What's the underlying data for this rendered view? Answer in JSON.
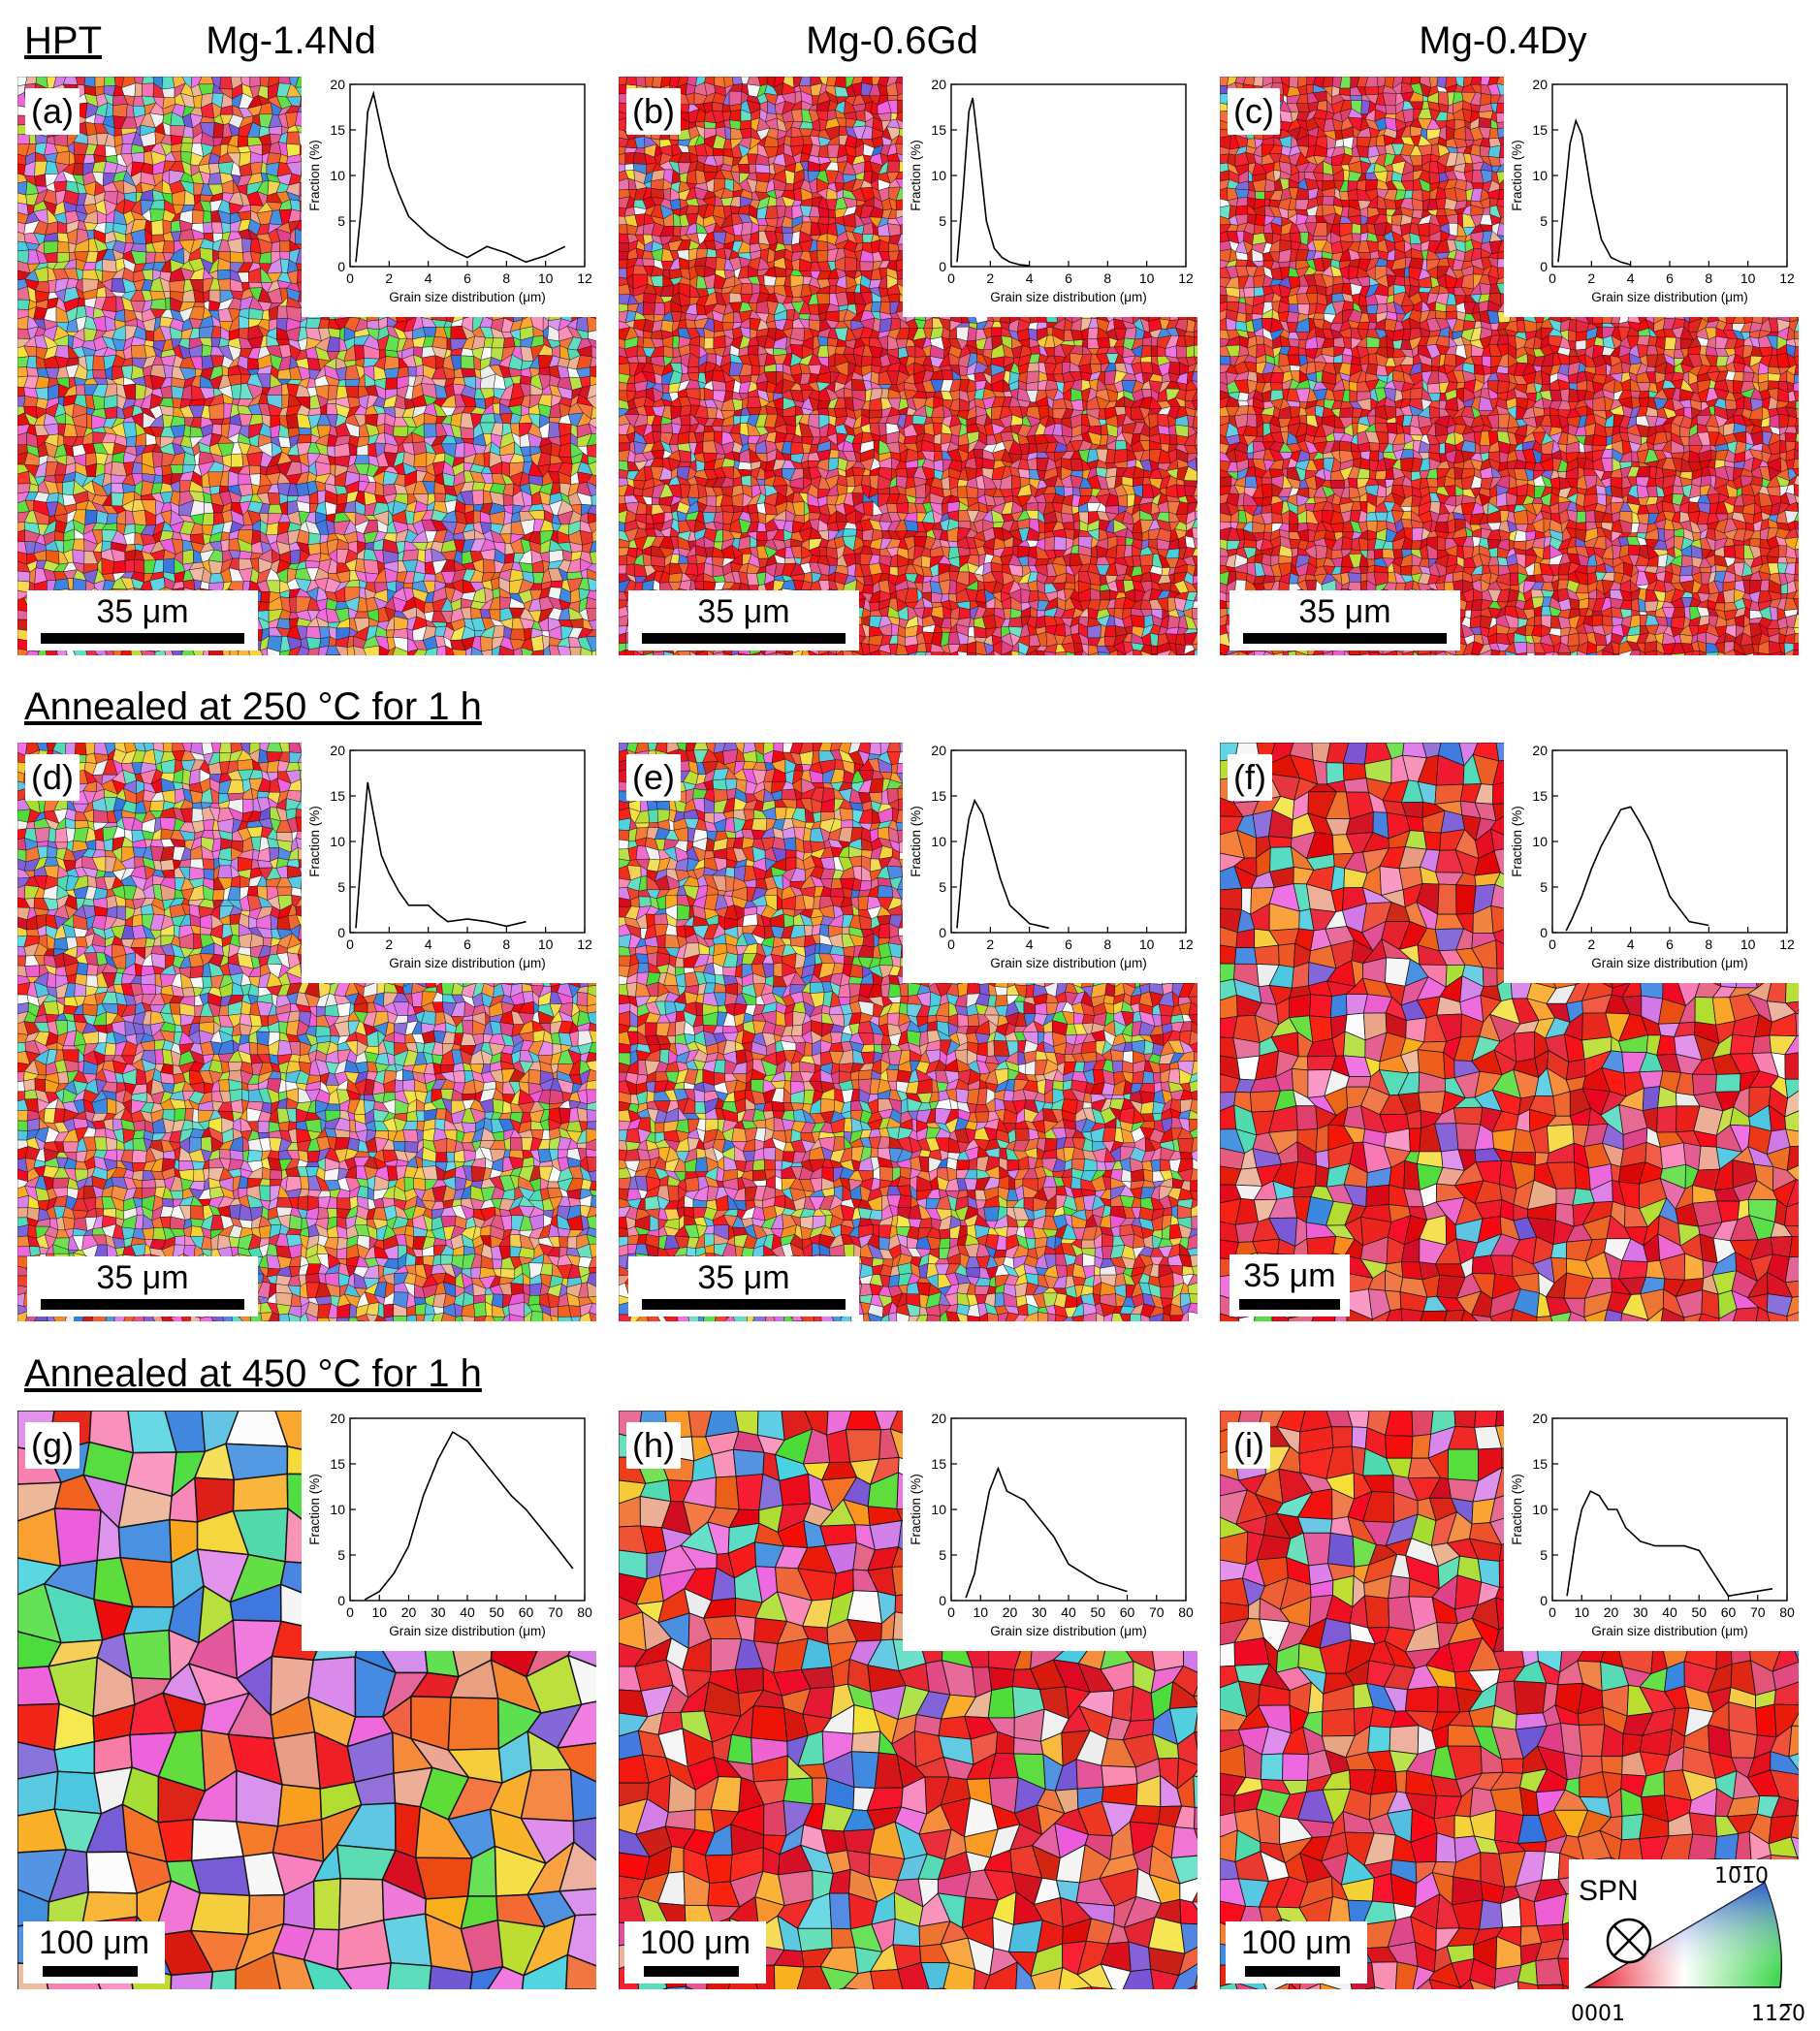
{
  "headings": {
    "hpt": "HPT",
    "annealed_250": "Annealed at 250 °C for 1 h",
    "annealed_450": "Annealed at 450 °C for 1 h"
  },
  "columns": [
    "Mg-1.4Nd",
    "Mg-0.6Gd",
    "Mg-0.4Dy"
  ],
  "scale_labels": {
    "small": "35 μm",
    "large": "100 μm"
  },
  "legend": {
    "spn": "SPN",
    "corner_bottom_left": "0001",
    "corner_top": "10̅1̅0",
    "corner_bottom_right": "112̅0",
    "colors": [
      "#e8192c",
      "#2a4dd8",
      "#39d64a"
    ]
  },
  "chart_data": [
    {
      "panel": "(a)",
      "type": "line",
      "xlabel": "Grain size distribution (μm)",
      "ylabel": "Fraction (%)",
      "xlim": [
        0,
        12
      ],
      "ylim": [
        0,
        20
      ],
      "xticks": [
        0,
        2,
        4,
        6,
        8,
        10,
        12
      ],
      "yticks": [
        0,
        5,
        10,
        15,
        20
      ],
      "x": [
        0.3,
        0.6,
        0.9,
        1.2,
        1.5,
        2,
        2.5,
        3,
        4,
        5,
        6,
        7,
        8,
        9,
        10,
        11
      ],
      "y": [
        0.5,
        7,
        17,
        19,
        16,
        11,
        8,
        5.5,
        3.5,
        2,
        1,
        2.2,
        1.5,
        0.5,
        1.2,
        2.2
      ]
    },
    {
      "panel": "(b)",
      "type": "line",
      "xlabel": "Grain size distribution (μm)",
      "ylabel": "Fraction (%)",
      "xlim": [
        0,
        12
      ],
      "ylim": [
        0,
        20
      ],
      "xticks": [
        0,
        2,
        4,
        6,
        8,
        10,
        12
      ],
      "yticks": [
        0,
        5,
        10,
        15,
        20
      ],
      "x": [
        0.3,
        0.6,
        0.9,
        1.1,
        1.4,
        1.8,
        2.2,
        2.6,
        3,
        3.5,
        4
      ],
      "y": [
        0.5,
        8,
        17,
        18.5,
        13,
        5,
        2,
        1,
        0.5,
        0.2,
        0.1
      ]
    },
    {
      "panel": "(c)",
      "type": "line",
      "xlabel": "Grain size distribution (μm)",
      "ylabel": "Fraction (%)",
      "xlim": [
        0,
        12
      ],
      "ylim": [
        0,
        20
      ],
      "xticks": [
        0,
        2,
        4,
        6,
        8,
        10,
        12
      ],
      "yticks": [
        0,
        5,
        10,
        15,
        20
      ],
      "x": [
        0.3,
        0.6,
        0.9,
        1.2,
        1.5,
        2,
        2.5,
        3,
        3.5,
        4
      ],
      "y": [
        0.5,
        7,
        13.5,
        16,
        14.5,
        8,
        3,
        1,
        0.5,
        0.2
      ]
    },
    {
      "panel": "(d)",
      "type": "line",
      "xlabel": "Grain size distribution (μm)",
      "ylabel": "Fraction (%)",
      "xlim": [
        0,
        12
      ],
      "ylim": [
        0,
        20
      ],
      "xticks": [
        0,
        2,
        4,
        6,
        8,
        10,
        12
      ],
      "yticks": [
        0,
        5,
        10,
        15,
        20
      ],
      "x": [
        0.3,
        0.6,
        0.9,
        1.2,
        1.6,
        2,
        2.5,
        3,
        4,
        4.5,
        5,
        6,
        7,
        8,
        9
      ],
      "y": [
        0.5,
        9,
        16.5,
        13,
        8.5,
        6.5,
        4.5,
        3,
        3,
        2,
        1.2,
        1.5,
        1.2,
        0.7,
        1.2
      ]
    },
    {
      "panel": "(e)",
      "type": "line",
      "xlabel": "Grain size distribution (μm)",
      "ylabel": "Fraction (%)",
      "xlim": [
        0,
        12
      ],
      "ylim": [
        0,
        20
      ],
      "xticks": [
        0,
        2,
        4,
        6,
        8,
        10,
        12
      ],
      "yticks": [
        0,
        5,
        10,
        15,
        20
      ],
      "x": [
        0.3,
        0.6,
        0.9,
        1.2,
        1.6,
        2,
        2.5,
        3,
        4,
        5
      ],
      "y": [
        0.5,
        8,
        12.5,
        14.5,
        13,
        10,
        6,
        3,
        1,
        0.5
      ]
    },
    {
      "panel": "(f)",
      "type": "line",
      "xlabel": "Grain size distribution (μm)",
      "ylabel": "Fraction (%)",
      "xlim": [
        0,
        12
      ],
      "ylim": [
        0,
        20
      ],
      "xticks": [
        0,
        2,
        4,
        6,
        8,
        10,
        12
      ],
      "yticks": [
        0,
        5,
        10,
        15,
        20
      ],
      "x": [
        0.7,
        1,
        1.5,
        2,
        2.5,
        3,
        3.5,
        4,
        4.5,
        5,
        5.5,
        6,
        7,
        8
      ],
      "y": [
        0.2,
        1.5,
        4,
        7,
        9.5,
        11.5,
        13.5,
        13.8,
        12,
        10,
        7,
        4,
        1.2,
        0.8
      ]
    },
    {
      "panel": "(g)",
      "type": "line",
      "xlabel": "Grain size distribution (μm)",
      "ylabel": "Fraction (%)",
      "xlim": [
        0,
        80
      ],
      "ylim": [
        0,
        20
      ],
      "xticks": [
        0,
        10,
        20,
        30,
        40,
        50,
        60,
        70,
        80
      ],
      "yticks": [
        0,
        5,
        10,
        15,
        20
      ],
      "x": [
        5,
        10,
        15,
        20,
        25,
        30,
        35,
        40,
        45,
        50,
        55,
        60,
        65,
        70,
        76
      ],
      "y": [
        0.1,
        1,
        3,
        6,
        11.5,
        15.5,
        18.5,
        17.5,
        15.5,
        13.5,
        11.5,
        10,
        8,
        6,
        3.5
      ]
    },
    {
      "panel": "(h)",
      "type": "line",
      "xlabel": "Grain size distribution (μm)",
      "ylabel": "Fraction (%)",
      "xlim": [
        0,
        80
      ],
      "ylim": [
        0,
        20
      ],
      "xticks": [
        0,
        10,
        20,
        30,
        40,
        50,
        60,
        70,
        80
      ],
      "yticks": [
        0,
        5,
        10,
        15,
        20
      ],
      "x": [
        5,
        8,
        10,
        13,
        16,
        19,
        22,
        25,
        30,
        35,
        40,
        45,
        50,
        55,
        60
      ],
      "y": [
        0.3,
        3,
        7,
        12,
        14.5,
        12,
        11.5,
        11,
        9,
        7,
        4,
        3,
        2,
        1.5,
        1
      ]
    },
    {
      "panel": "(i)",
      "type": "line",
      "xlabel": "Grain size distribution (μm)",
      "ylabel": "Fraction (%)",
      "xlim": [
        0,
        80
      ],
      "ylim": [
        0,
        20
      ],
      "xticks": [
        0,
        10,
        20,
        30,
        40,
        50,
        60,
        70,
        80
      ],
      "yticks": [
        0,
        5,
        10,
        15,
        20
      ],
      "x": [
        5,
        8,
        10,
        13,
        16,
        19,
        22,
        25,
        30,
        35,
        40,
        45,
        50,
        55,
        60,
        75
      ],
      "y": [
        0.5,
        7,
        10,
        12,
        11.5,
        10,
        10,
        8,
        6.5,
        6,
        6,
        6,
        5.5,
        3,
        0.5,
        1.3
      ]
    }
  ]
}
